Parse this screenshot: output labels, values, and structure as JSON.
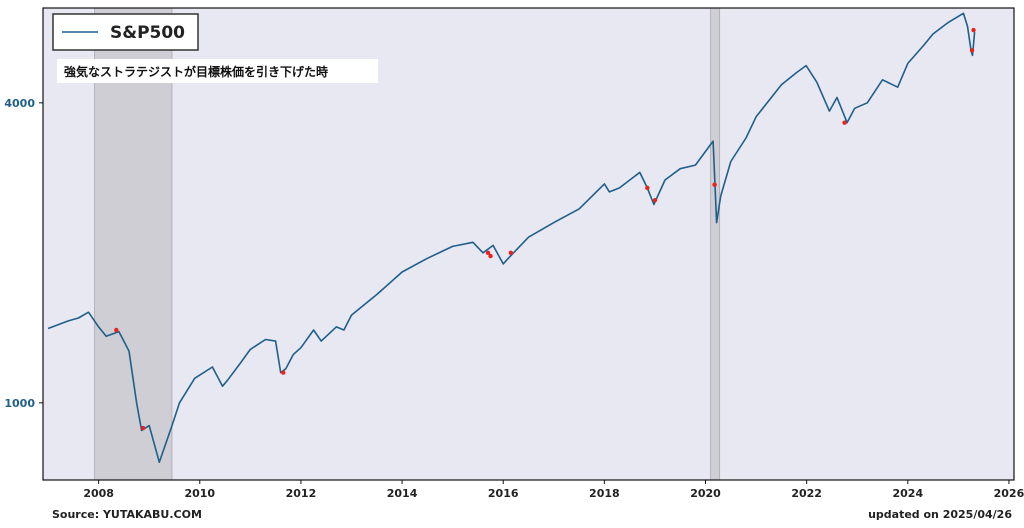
{
  "chart_data": {
    "type": "line",
    "y_scale": "log",
    "ylim": [
      700,
      6200
    ],
    "xlim": [
      2006.9,
      2026.1
    ],
    "x_ticks": [
      2008,
      2010,
      2012,
      2014,
      2016,
      2018,
      2020,
      2022,
      2024,
      2026
    ],
    "y_ticks": [
      1000,
      4000
    ],
    "grid": false,
    "legend": {
      "position": "top-left"
    },
    "series": [
      {
        "name": "S&P500",
        "color": "#1f5f8b",
        "x": [
          2007.0,
          2007.4,
          2007.6,
          2007.8,
          2008.0,
          2008.15,
          2008.4,
          2008.6,
          2008.75,
          2008.85,
          2009.0,
          2009.2,
          2009.45,
          2009.6,
          2009.9,
          2010.25,
          2010.45,
          2010.55,
          2010.8,
          2011.0,
          2011.3,
          2011.5,
          2011.6,
          2011.7,
          2011.85,
          2012.0,
          2012.25,
          2012.4,
          2012.7,
          2012.85,
          2013.0,
          2013.5,
          2014.0,
          2014.5,
          2015.0,
          2015.4,
          2015.6,
          2015.8,
          2016.0,
          2016.1,
          2016.5,
          2017.0,
          2017.5,
          2018.0,
          2018.1,
          2018.3,
          2018.7,
          2018.85,
          2018.98,
          2019.2,
          2019.5,
          2019.8,
          2020.1,
          2020.15,
          2020.22,
          2020.3,
          2020.5,
          2020.8,
          2021.0,
          2021.5,
          2021.8,
          2021.99,
          2022.2,
          2022.45,
          2022.6,
          2022.8,
          2022.95,
          2023.2,
          2023.5,
          2023.8,
          2024.0,
          2024.3,
          2024.5,
          2024.8,
          2025.1,
          2025.18,
          2025.25,
          2025.28,
          2025.32
        ],
        "values": [
          1410,
          1460,
          1480,
          1520,
          1420,
          1360,
          1390,
          1270,
          1000,
          880,
          900,
          760,
          900,
          1000,
          1120,
          1180,
          1080,
          1110,
          1200,
          1280,
          1340,
          1330,
          1150,
          1170,
          1250,
          1290,
          1400,
          1330,
          1420,
          1400,
          1500,
          1650,
          1830,
          1950,
          2060,
          2100,
          2000,
          2070,
          1900,
          1950,
          2150,
          2300,
          2450,
          2750,
          2650,
          2700,
          2900,
          2700,
          2500,
          2800,
          2950,
          3000,
          3300,
          3350,
          2300,
          2600,
          3050,
          3400,
          3750,
          4350,
          4600,
          4750,
          4400,
          3850,
          4100,
          3650,
          3900,
          4000,
          4450,
          4300,
          4800,
          5200,
          5500,
          5800,
          6050,
          5700,
          5100,
          4980,
          5550
        ]
      }
    ],
    "downgrade_points": {
      "x": [
        2008.35,
        2008.88,
        2011.65,
        2015.7,
        2015.75,
        2016.15,
        2018.85,
        2019.0,
        2020.18,
        2022.75,
        2025.27,
        2025.3
      ],
      "values": [
        1400,
        890,
        1150,
        2000,
        1970,
        2000,
        2700,
        2550,
        2740,
        3650,
        5100,
        5600
      ]
    },
    "shaded_ranges": [
      [
        2007.92,
        2009.45
      ],
      [
        2020.1,
        2020.28
      ]
    ]
  },
  "legend": {
    "label": "S&P500"
  },
  "annotation": {
    "text": "強気なストラテジストが目標株価を引き下げた時"
  },
  "footer": {
    "source": "Source: YUTAKABU.COM",
    "updated": "updated on 2025/04/26"
  },
  "colors": {
    "line": "#1f5f8b",
    "marker": "#e8221e",
    "plot_bg": "#e8e8f2",
    "shade": "#c9c9cf"
  }
}
